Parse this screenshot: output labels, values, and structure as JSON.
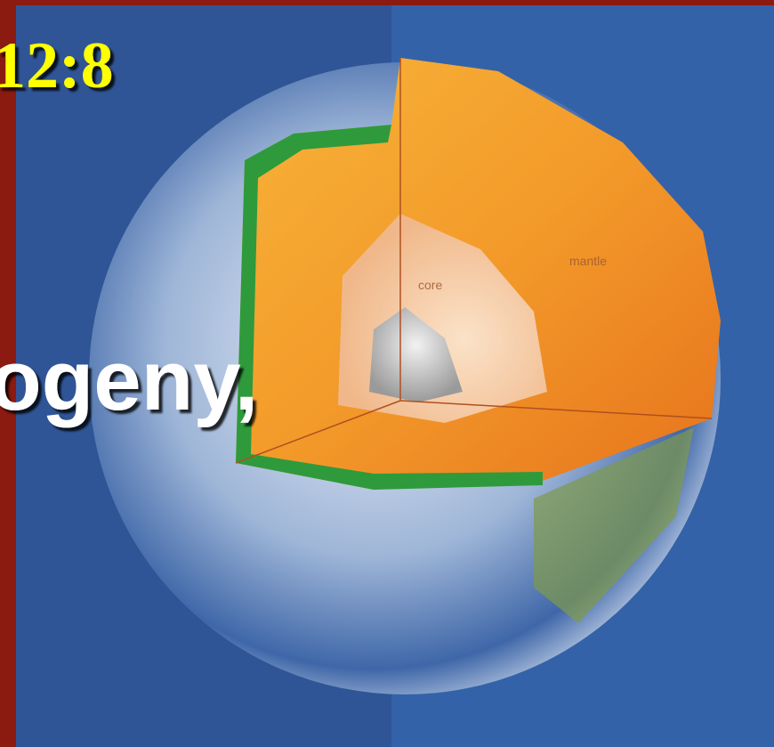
{
  "slide": {
    "reference": "12:8",
    "text": "ogeny,",
    "diagram_labels": {
      "core": "core",
      "mantle": "mantle"
    }
  }
}
